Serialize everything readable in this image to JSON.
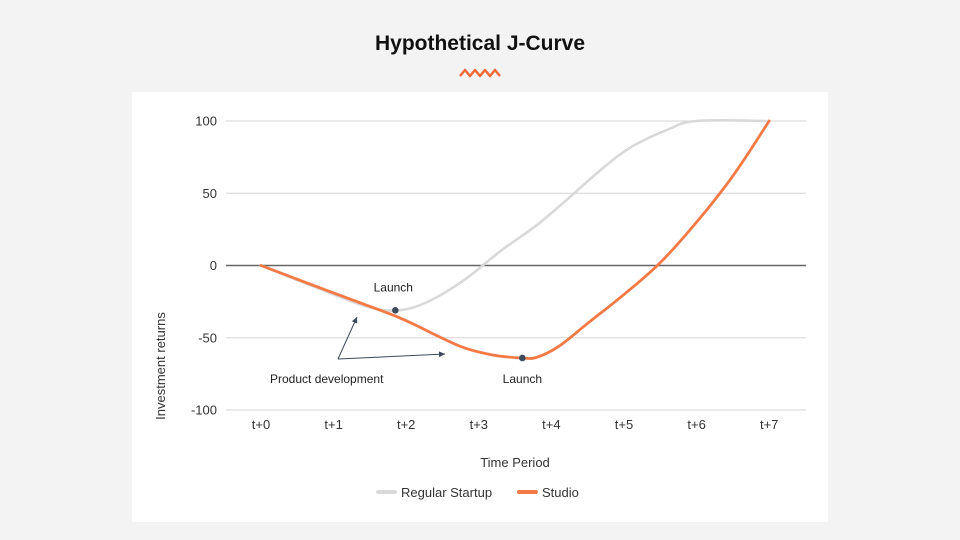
{
  "page": {
    "title": "Hypothetical J-Curve",
    "accent_color": "#f06a35"
  },
  "chart_data": {
    "type": "line",
    "title": "Hypothetical J-Curve",
    "xlabel": "Time Period",
    "ylabel": "Investment returns",
    "categories": [
      "t+0",
      "t+1",
      "t+2",
      "t+3",
      "t+4",
      "t+5",
      "t+6",
      "t+7"
    ],
    "yticks": [
      "100",
      "50",
      "0",
      "-50",
      "-100"
    ],
    "ylim": [
      -100,
      100
    ],
    "grid": true,
    "legend_position": "bottom",
    "series": [
      {
        "name": "Regular Startup",
        "color": "#d9d9d9",
        "points": [
          [
            0,
            0
          ],
          [
            1,
            -20
          ],
          [
            1.5,
            -29
          ],
          [
            1.9,
            -31
          ],
          [
            2.3,
            -25
          ],
          [
            2.8,
            -10
          ],
          [
            3.3,
            10
          ],
          [
            3.8,
            28
          ],
          [
            4.2,
            45
          ],
          [
            4.7,
            67
          ],
          [
            5.1,
            82
          ],
          [
            5.6,
            94
          ],
          [
            6,
            100
          ],
          [
            7,
            100
          ]
        ]
      },
      {
        "name": "Studio",
        "color": "#f47a45",
        "points": [
          [
            0,
            0
          ],
          [
            1,
            -19
          ],
          [
            1.9,
            -36
          ],
          [
            2.4,
            -48
          ],
          [
            2.8,
            -57
          ],
          [
            3.2,
            -62
          ],
          [
            3.6,
            -64
          ],
          [
            3.8,
            -63.5
          ],
          [
            4.1,
            -56
          ],
          [
            4.5,
            -40
          ],
          [
            5,
            -20
          ],
          [
            5.5,
            2
          ],
          [
            6,
            30
          ],
          [
            6.5,
            62
          ],
          [
            7,
            100
          ]
        ]
      }
    ],
    "annotations": [
      {
        "text": "Launch",
        "x": 1.85,
        "y": -31,
        "marker": true
      },
      {
        "text": "Launch",
        "x": 3.6,
        "y": -64,
        "marker": true
      },
      {
        "text": "Product development"
      }
    ]
  }
}
